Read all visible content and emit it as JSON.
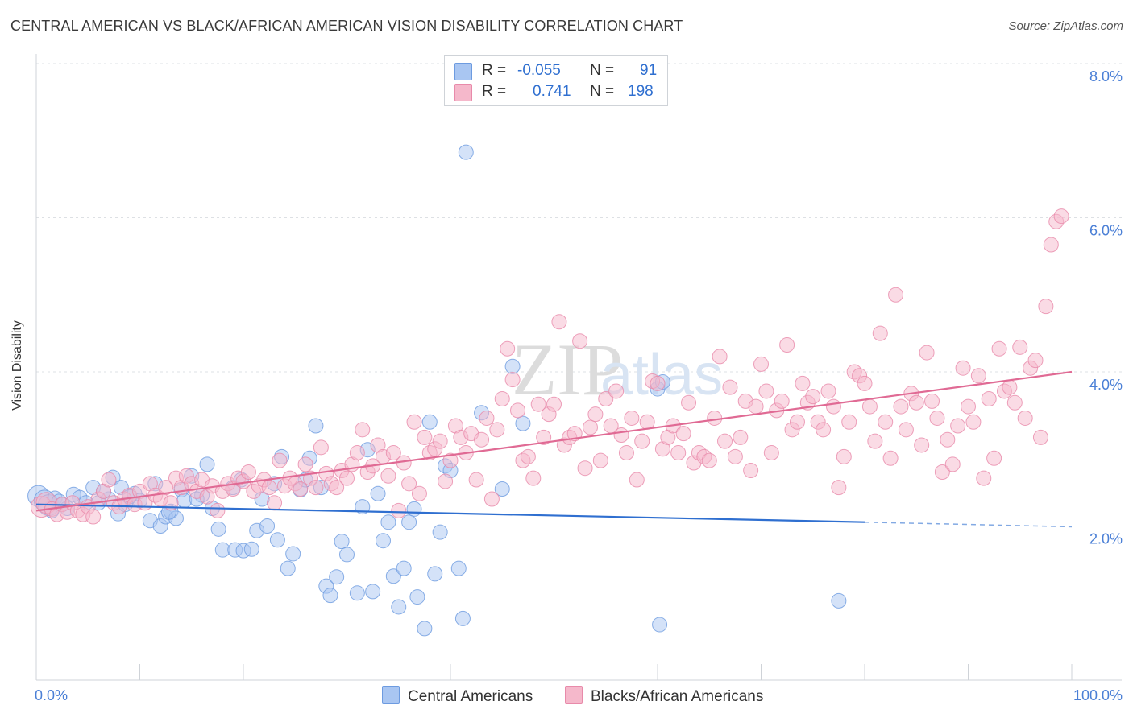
{
  "title": "CENTRAL AMERICAN VS BLACK/AFRICAN AMERICAN VISION DISABILITY CORRELATION CHART",
  "source": "Source: ZipAtlas.com",
  "watermark": "ZIPatlas",
  "legend_top": [
    {
      "r_label": "R =",
      "r_value": "-0.055",
      "n_label": "N =",
      "n_value": "91",
      "color": "#a9c6f2",
      "stroke": "#6d9be0"
    },
    {
      "r_label": "R =",
      "r_value": "0.741",
      "n_label": "N =",
      "n_value": "198",
      "color": "#f5b8cb",
      "stroke": "#e88aaa"
    }
  ],
  "legend_bottom": [
    {
      "label": "Central Americans",
      "color": "#a9c6f2"
    },
    {
      "label": "Blacks/African Americans",
      "color": "#f5b8cb"
    }
  ],
  "chart_data": {
    "type": "scatter",
    "title": "CENTRAL AMERICAN VS BLACK/AFRICAN AMERICAN VISION DISABILITY CORRELATION CHART",
    "xlabel": "",
    "ylabel": "Vision Disability",
    "x_tick_labels": [
      "0.0%",
      "100.0%"
    ],
    "y_tick_labels": [
      "2.0%",
      "4.0%",
      "6.0%",
      "8.0%"
    ],
    "xlim": [
      0,
      100
    ],
    "ylim": [
      0,
      8
    ],
    "grid": true,
    "legend_position": "top-center",
    "series": [
      {
        "name": "Central Americans",
        "color": "#6d9be0",
        "fill": "#a9c6f2",
        "trend": {
          "x0": 0,
          "y0": 2.28,
          "x1": 80,
          "y1": 2.05,
          "dashed_to": 100,
          "dashed_y": 1.99,
          "color": "#2f6fd0"
        },
        "points": [
          [
            0.2,
            2.39
          ],
          [
            0.8,
            2.33
          ],
          [
            1.2,
            2.27
          ],
          [
            1.8,
            2.36
          ],
          [
            2.5,
            2.28
          ],
          [
            3.0,
            2.23
          ],
          [
            3.6,
            2.41
          ],
          [
            4.2,
            2.37
          ],
          [
            5.5,
            2.5
          ],
          [
            6.0,
            2.3
          ],
          [
            7.0,
            2.35
          ],
          [
            7.4,
            2.63
          ],
          [
            7.9,
            2.16
          ],
          [
            8.2,
            2.5
          ],
          [
            8.6,
            2.28
          ],
          [
            9.5,
            2.42
          ],
          [
            10.0,
            2.33
          ],
          [
            11.0,
            2.07
          ],
          [
            11.5,
            2.55
          ],
          [
            12.0,
            2.0
          ],
          [
            12.5,
            2.12
          ],
          [
            13.0,
            2.19
          ],
          [
            13.5,
            2.1
          ],
          [
            14.0,
            2.47
          ],
          [
            14.3,
            2.33
          ],
          [
            15.0,
            2.65
          ],
          [
            16.0,
            2.4
          ],
          [
            16.5,
            2.8
          ],
          [
            17.0,
            2.23
          ],
          [
            17.6,
            1.96
          ],
          [
            18.0,
            1.69
          ],
          [
            19.0,
            2.5
          ],
          [
            19.2,
            1.69
          ],
          [
            19.8,
            2.6
          ],
          [
            20.0,
            1.68
          ],
          [
            20.8,
            1.7
          ],
          [
            21.3,
            1.94
          ],
          [
            21.8,
            2.35
          ],
          [
            22.3,
            2.0
          ],
          [
            23.0,
            2.55
          ],
          [
            23.3,
            1.82
          ],
          [
            23.7,
            2.9
          ],
          [
            24.3,
            1.45
          ],
          [
            24.8,
            1.64
          ],
          [
            25.5,
            2.47
          ],
          [
            26.0,
            2.6
          ],
          [
            26.4,
            2.88
          ],
          [
            27.0,
            3.3
          ],
          [
            27.5,
            2.5
          ],
          [
            28.0,
            1.22
          ],
          [
            28.4,
            1.1
          ],
          [
            29.0,
            1.34
          ],
          [
            29.5,
            1.8
          ],
          [
            30.0,
            1.63
          ],
          [
            31.0,
            1.13
          ],
          [
            31.5,
            2.25
          ],
          [
            32.0,
            2.99
          ],
          [
            32.5,
            1.15
          ],
          [
            33.0,
            2.42
          ],
          [
            33.5,
            1.81
          ],
          [
            34.0,
            2.05
          ],
          [
            34.5,
            1.35
          ],
          [
            35.0,
            0.95
          ],
          [
            35.5,
            1.45
          ],
          [
            36.0,
            2.05
          ],
          [
            36.5,
            2.22
          ],
          [
            36.8,
            1.08
          ],
          [
            37.5,
            0.67
          ],
          [
            38.0,
            3.35
          ],
          [
            38.5,
            1.38
          ],
          [
            39.0,
            1.92
          ],
          [
            39.5,
            2.78
          ],
          [
            40.0,
            2.72
          ],
          [
            40.8,
            1.45
          ],
          [
            41.2,
            0.8
          ],
          [
            41.5,
            6.85
          ],
          [
            43.0,
            3.47
          ],
          [
            45.0,
            2.48
          ],
          [
            46.0,
            4.07
          ],
          [
            47.0,
            3.33
          ],
          [
            60.0,
            3.78
          ],
          [
            60.5,
            3.87
          ],
          [
            60.2,
            0.72
          ],
          [
            77.5,
            1.03
          ],
          [
            1.5,
            2.2
          ],
          [
            4.8,
            2.3
          ],
          [
            9.0,
            2.38
          ],
          [
            12.8,
            2.18
          ],
          [
            15.5,
            2.35
          ],
          [
            6.5,
            2.45
          ],
          [
            2.2,
            2.32
          ]
        ]
      },
      {
        "name": "Blacks/African Americans",
        "color": "#e88aaa",
        "fill": "#f5b8cb",
        "trend": {
          "x0": 0,
          "y0": 2.2,
          "x1": 100,
          "y1": 4.0,
          "color": "#e06a94"
        },
        "points": [
          [
            0.5,
            2.25
          ],
          [
            1.0,
            2.3
          ],
          [
            1.5,
            2.22
          ],
          [
            2.0,
            2.15
          ],
          [
            2.5,
            2.28
          ],
          [
            3.0,
            2.18
          ],
          [
            3.5,
            2.3
          ],
          [
            4.0,
            2.2
          ],
          [
            4.5,
            2.15
          ],
          [
            5.0,
            2.25
          ],
          [
            5.5,
            2.12
          ],
          [
            6.0,
            2.35
          ],
          [
            6.5,
            2.45
          ],
          [
            7.0,
            2.6
          ],
          [
            7.5,
            2.3
          ],
          [
            8.0,
            2.25
          ],
          [
            8.5,
            2.35
          ],
          [
            9.0,
            2.4
          ],
          [
            9.5,
            2.28
          ],
          [
            10.0,
            2.45
          ],
          [
            10.5,
            2.3
          ],
          [
            11.0,
            2.55
          ],
          [
            11.5,
            2.4
          ],
          [
            12.0,
            2.35
          ],
          [
            12.5,
            2.5
          ],
          [
            13.0,
            2.3
          ],
          [
            13.5,
            2.62
          ],
          [
            14.0,
            2.5
          ],
          [
            14.5,
            2.65
          ],
          [
            15.0,
            2.55
          ],
          [
            15.5,
            2.45
          ],
          [
            16.0,
            2.6
          ],
          [
            16.5,
            2.38
          ],
          [
            17.0,
            2.52
          ],
          [
            17.5,
            2.2
          ],
          [
            18.0,
            2.45
          ],
          [
            18.5,
            2.55
          ],
          [
            19.0,
            2.48
          ],
          [
            19.5,
            2.62
          ],
          [
            20.0,
            2.58
          ],
          [
            20.5,
            2.7
          ],
          [
            21.0,
            2.45
          ],
          [
            21.5,
            2.52
          ],
          [
            22.0,
            2.6
          ],
          [
            22.5,
            2.5
          ],
          [
            23.0,
            2.3
          ],
          [
            23.5,
            2.85
          ],
          [
            24.0,
            2.52
          ],
          [
            24.5,
            2.62
          ],
          [
            25.0,
            2.55
          ],
          [
            25.5,
            2.48
          ],
          [
            26.0,
            2.8
          ],
          [
            26.5,
            2.62
          ],
          [
            27.0,
            2.5
          ],
          [
            27.5,
            3.02
          ],
          [
            28.0,
            2.68
          ],
          [
            28.5,
            2.55
          ],
          [
            29.0,
            2.5
          ],
          [
            29.5,
            2.72
          ],
          [
            30.0,
            2.62
          ],
          [
            30.5,
            2.8
          ],
          [
            31.0,
            2.95
          ],
          [
            31.5,
            3.25
          ],
          [
            32.0,
            2.7
          ],
          [
            32.5,
            2.78
          ],
          [
            33.0,
            3.05
          ],
          [
            33.5,
            2.9
          ],
          [
            34.0,
            2.65
          ],
          [
            34.5,
            2.95
          ],
          [
            35.0,
            2.2
          ],
          [
            35.5,
            2.82
          ],
          [
            36.0,
            2.55
          ],
          [
            36.5,
            3.35
          ],
          [
            37.0,
            2.42
          ],
          [
            37.5,
            3.15
          ],
          [
            38.0,
            2.95
          ],
          [
            38.5,
            3.0
          ],
          [
            39.0,
            3.1
          ],
          [
            39.5,
            2.58
          ],
          [
            40.0,
            2.85
          ],
          [
            40.5,
            3.3
          ],
          [
            41.0,
            3.15
          ],
          [
            41.5,
            2.95
          ],
          [
            42.0,
            3.2
          ],
          [
            42.5,
            2.6
          ],
          [
            43.0,
            3.12
          ],
          [
            43.5,
            3.4
          ],
          [
            44.0,
            2.35
          ],
          [
            44.5,
            3.25
          ],
          [
            45.0,
            3.65
          ],
          [
            45.5,
            4.3
          ],
          [
            46.0,
            3.9
          ],
          [
            46.5,
            3.5
          ],
          [
            47.0,
            2.85
          ],
          [
            47.5,
            2.9
          ],
          [
            48.0,
            2.62
          ],
          [
            48.5,
            3.58
          ],
          [
            49.0,
            3.15
          ],
          [
            49.5,
            3.45
          ],
          [
            50.0,
            3.58
          ],
          [
            50.5,
            4.65
          ],
          [
            51.0,
            3.05
          ],
          [
            51.5,
            3.15
          ],
          [
            52.0,
            3.2
          ],
          [
            52.5,
            4.4
          ],
          [
            53.0,
            2.75
          ],
          [
            53.5,
            3.28
          ],
          [
            54.0,
            3.45
          ],
          [
            54.5,
            2.85
          ],
          [
            55.0,
            3.65
          ],
          [
            55.5,
            3.3
          ],
          [
            56.0,
            3.75
          ],
          [
            56.5,
            3.18
          ],
          [
            57.0,
            2.95
          ],
          [
            57.5,
            3.4
          ],
          [
            58.0,
            2.6
          ],
          [
            58.5,
            3.1
          ],
          [
            59.0,
            3.35
          ],
          [
            59.5,
            3.88
          ],
          [
            60.0,
            3.85
          ],
          [
            60.5,
            3.0
          ],
          [
            61.0,
            3.15
          ],
          [
            61.5,
            3.3
          ],
          [
            62.0,
            2.95
          ],
          [
            62.5,
            3.2
          ],
          [
            63.0,
            3.6
          ],
          [
            63.5,
            2.82
          ],
          [
            64.0,
            2.95
          ],
          [
            64.5,
            2.9
          ],
          [
            65.0,
            2.85
          ],
          [
            65.5,
            3.4
          ],
          [
            66.0,
            4.2
          ],
          [
            66.5,
            3.1
          ],
          [
            67.0,
            3.8
          ],
          [
            67.5,
            2.9
          ],
          [
            68.0,
            3.15
          ],
          [
            68.5,
            3.62
          ],
          [
            69.0,
            2.72
          ],
          [
            69.5,
            3.55
          ],
          [
            70.0,
            4.1
          ],
          [
            70.5,
            3.75
          ],
          [
            71.0,
            2.95
          ],
          [
            71.5,
            3.5
          ],
          [
            72.0,
            3.62
          ],
          [
            72.5,
            4.35
          ],
          [
            73.0,
            3.25
          ],
          [
            73.5,
            3.35
          ],
          [
            74.0,
            3.85
          ],
          [
            74.5,
            3.6
          ],
          [
            75.0,
            3.68
          ],
          [
            75.5,
            3.35
          ],
          [
            76.0,
            3.25
          ],
          [
            76.5,
            3.75
          ],
          [
            77.0,
            3.55
          ],
          [
            77.5,
            2.5
          ],
          [
            78.0,
            2.9
          ],
          [
            78.5,
            3.35
          ],
          [
            79.0,
            4.0
          ],
          [
            79.5,
            3.95
          ],
          [
            80.0,
            3.85
          ],
          [
            80.5,
            3.55
          ],
          [
            81.0,
            3.1
          ],
          [
            81.5,
            4.5
          ],
          [
            82.0,
            3.35
          ],
          [
            82.5,
            2.88
          ],
          [
            83.0,
            5.0
          ],
          [
            83.5,
            3.55
          ],
          [
            84.0,
            3.25
          ],
          [
            84.5,
            3.72
          ],
          [
            85.0,
            3.6
          ],
          [
            85.5,
            3.05
          ],
          [
            86.0,
            4.25
          ],
          [
            86.5,
            3.62
          ],
          [
            87.0,
            3.4
          ],
          [
            87.5,
            2.7
          ],
          [
            88.0,
            3.12
          ],
          [
            88.5,
            2.8
          ],
          [
            89.0,
            3.3
          ],
          [
            89.5,
            4.05
          ],
          [
            90.0,
            3.55
          ],
          [
            90.5,
            3.35
          ],
          [
            91.0,
            3.95
          ],
          [
            91.5,
            2.62
          ],
          [
            92.0,
            3.65
          ],
          [
            92.5,
            2.88
          ],
          [
            93.0,
            4.3
          ],
          [
            93.5,
            3.75
          ],
          [
            94.0,
            3.8
          ],
          [
            94.5,
            3.6
          ],
          [
            95.0,
            4.32
          ],
          [
            95.5,
            3.4
          ],
          [
            96.0,
            4.05
          ],
          [
            96.5,
            4.15
          ],
          [
            97.0,
            3.15
          ],
          [
            97.5,
            4.85
          ],
          [
            98.0,
            5.65
          ],
          [
            98.5,
            5.95
          ],
          [
            99.0,
            6.02
          ]
        ]
      }
    ]
  }
}
